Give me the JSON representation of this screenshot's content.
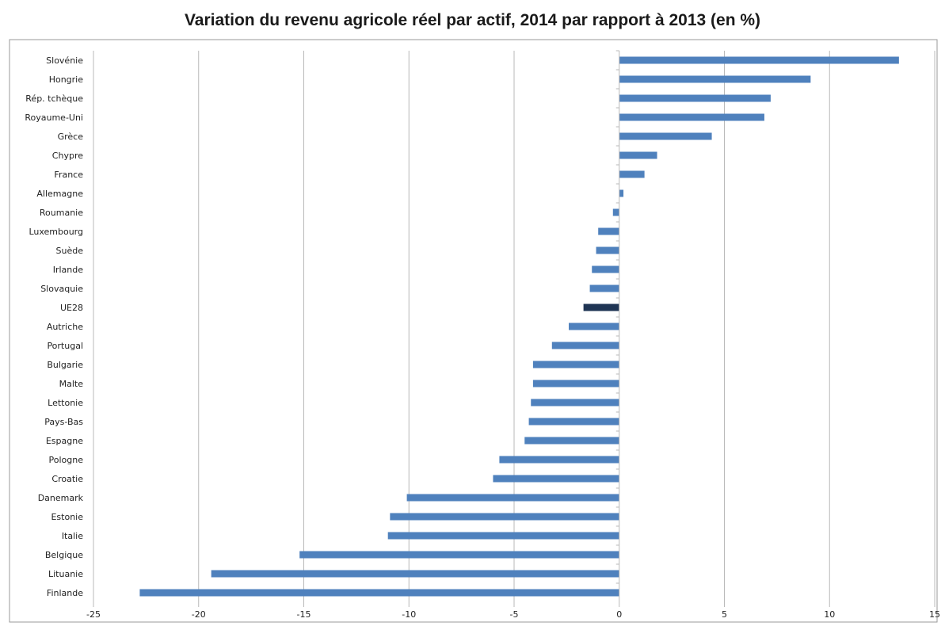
{
  "chart_data": {
    "type": "bar",
    "orientation": "horizontal",
    "title": "Variation du revenu agricole réel par actif, 2014 par rapport à 2013 (en %)",
    "xlabel": "",
    "ylabel": "",
    "xlim": [
      -25,
      15
    ],
    "xticks": [
      -25,
      -20,
      -15,
      -10,
      -5,
      0,
      5,
      10,
      15
    ],
    "grid": "vertical",
    "legend": "none",
    "colors": {
      "bar": "#4f81bd",
      "highlight": "#1f3554",
      "grid": "#b9b9b9",
      "frame": "#9a9a9a"
    },
    "highlight_category": "UE28",
    "categories": [
      "Slovénie",
      "Hongrie",
      "Rép. tchèque",
      "Royaume-Uni",
      "Grèce",
      "Chypre",
      "France",
      "Allemagne",
      "Roumanie",
      "Luxembourg",
      "Suède",
      "Irlande",
      "Slovaquie",
      "UE28",
      "Autriche",
      "Portugal",
      "Bulgarie",
      "Malte",
      "Lettonie",
      "Pays-Bas",
      "Espagne",
      "Pologne",
      "Croatie",
      "Danemark",
      "Estonie",
      "Italie",
      "Belgique",
      "Lituanie",
      "Finlande"
    ],
    "values": [
      13.3,
      9.1,
      7.2,
      6.9,
      4.4,
      1.8,
      1.2,
      0.2,
      -0.3,
      -1.0,
      -1.1,
      -1.3,
      -1.4,
      -1.7,
      -2.4,
      -3.2,
      -4.1,
      -4.1,
      -4.2,
      -4.3,
      -4.5,
      -5.7,
      -6.0,
      -10.1,
      -10.9,
      -11.0,
      -15.2,
      -19.4,
      -22.8
    ]
  }
}
